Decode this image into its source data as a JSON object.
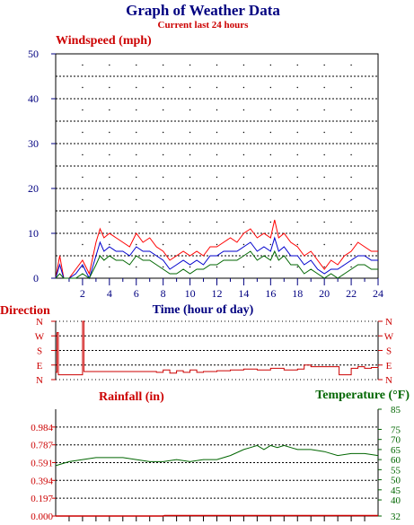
{
  "header": {
    "title": "Graph of Weather Data",
    "subtitle": "Current last 24 hours"
  },
  "colors": {
    "title": "#000080",
    "subtitle": "#cc0000",
    "wind_label": "#cc0000",
    "wind_axis": "#000080",
    "gust": "#ff0000",
    "avg": "#0000cc",
    "low": "#006600",
    "direction": "#cc0000",
    "rain": "#cc0000",
    "temp": "#006600",
    "grid": "#000000"
  },
  "chart_data": [
    {
      "id": "wind",
      "type": "line",
      "title": "Windspeed (mph)",
      "xlabel": "Time (hour of day)",
      "ylabel": "",
      "xlim": [
        0,
        24
      ],
      "ylim": [
        0,
        50
      ],
      "x_ticks": [
        2,
        4,
        6,
        8,
        10,
        12,
        14,
        16,
        18,
        20,
        22,
        24
      ],
      "y_ticks": [
        0,
        10,
        20,
        30,
        40,
        50
      ],
      "grid": true,
      "series": [
        {
          "key": "gust",
          "color": "#ff0000",
          "x": [
            0,
            0.3,
            0.6,
            1,
            1.5,
            2,
            2.5,
            3,
            3.3,
            3.6,
            4,
            4.5,
            5,
            5.5,
            6,
            6.5,
            7,
            7.5,
            8,
            8.5,
            9,
            9.5,
            10,
            10.5,
            11,
            11.5,
            12,
            12.5,
            13,
            13.5,
            14,
            14.5,
            15,
            15.5,
            16,
            16.3,
            16.6,
            17,
            17.5,
            18,
            18.5,
            19,
            19.5,
            20,
            20.5,
            21,
            21.5,
            22,
            22.5,
            23,
            23.5,
            24
          ],
          "y": [
            0,
            5,
            0,
            0,
            2,
            4,
            1,
            8,
            11,
            9,
            10,
            9,
            8,
            7,
            10,
            8,
            9,
            7,
            6,
            4,
            5,
            6,
            5,
            6,
            5,
            7,
            7,
            8,
            9,
            8,
            10,
            11,
            9,
            10,
            9,
            13,
            9,
            10,
            8,
            7,
            5,
            6,
            4,
            2,
            4,
            3,
            5,
            6,
            8,
            7,
            6,
            6
          ]
        },
        {
          "key": "avg",
          "color": "#0000cc",
          "x": [
            0,
            0.3,
            0.6,
            1,
            1.5,
            2,
            2.5,
            3,
            3.3,
            3.6,
            4,
            4.5,
            5,
            5.5,
            6,
            6.5,
            7,
            7.5,
            8,
            8.5,
            9,
            9.5,
            10,
            10.5,
            11,
            11.5,
            12,
            12.5,
            13,
            13.5,
            14,
            14.5,
            15,
            15.5,
            16,
            16.3,
            16.6,
            17,
            17.5,
            18,
            18.5,
            19,
            19.5,
            20,
            20.5,
            21,
            21.5,
            22,
            22.5,
            23,
            23.5,
            24
          ],
          "y": [
            0,
            3,
            0,
            0,
            1,
            3,
            0,
            5,
            8,
            6,
            7,
            6,
            6,
            5,
            7,
            6,
            6,
            5,
            4,
            2,
            3,
            4,
            3,
            4,
            3,
            5,
            5,
            6,
            6,
            6,
            7,
            8,
            6,
            7,
            6,
            9,
            6,
            7,
            5,
            5,
            3,
            4,
            2,
            1,
            2,
            2,
            3,
            4,
            5,
            5,
            4,
            4
          ]
        },
        {
          "key": "low",
          "color": "#006600",
          "x": [
            0,
            0.3,
            0.6,
            1,
            1.5,
            2,
            2.5,
            3,
            3.3,
            3.6,
            4,
            4.5,
            5,
            5.5,
            6,
            6.5,
            7,
            7.5,
            8,
            8.5,
            9,
            9.5,
            10,
            10.5,
            11,
            11.5,
            12,
            12.5,
            13,
            13.5,
            14,
            14.5,
            15,
            15.5,
            16,
            16.3,
            16.6,
            17,
            17.5,
            18,
            18.5,
            19,
            19.5,
            20,
            20.5,
            21,
            21.5,
            22,
            22.5,
            23,
            23.5,
            24
          ],
          "y": [
            0,
            1,
            0,
            0,
            0,
            1,
            0,
            3,
            5,
            4,
            5,
            4,
            4,
            3,
            5,
            4,
            4,
            3,
            2,
            1,
            1,
            2,
            1,
            2,
            2,
            3,
            3,
            4,
            4,
            4,
            5,
            6,
            4,
            5,
            4,
            6,
            4,
            5,
            3,
            3,
            1,
            2,
            1,
            0,
            1,
            0,
            1,
            2,
            3,
            3,
            2,
            2
          ]
        }
      ]
    },
    {
      "id": "direction",
      "type": "line",
      "title": "Direction",
      "xlim": [
        0,
        24
      ],
      "y_categories": [
        "N",
        "W",
        "S",
        "E",
        "N"
      ],
      "series": [
        {
          "key": "direction",
          "color": "#cc0000",
          "x": [
            0,
            0.1,
            0.2,
            0.5,
            1,
            1.5,
            1.9,
            2.0,
            2.1,
            2.3,
            3,
            4,
            5,
            6,
            7,
            7.5,
            8,
            8.5,
            9,
            9.5,
            10,
            10.5,
            11,
            12,
            13,
            14,
            15,
            16,
            17,
            18,
            18.5,
            19,
            20,
            20.5,
            21,
            21.1,
            21.5,
            22,
            22.5,
            23,
            23.5,
            24
          ],
          "y": [
            45,
            290,
            30,
            30,
            30,
            30,
            30,
            360,
            50,
            50,
            50,
            50,
            50,
            50,
            50,
            45,
            60,
            40,
            55,
            45,
            60,
            45,
            50,
            55,
            60,
            65,
            60,
            70,
            60,
            65,
            90,
            80,
            80,
            80,
            80,
            30,
            30,
            70,
            80,
            70,
            75,
            70
          ]
        }
      ]
    },
    {
      "id": "rain_temp",
      "type": "line",
      "title": "Rainfall (in)",
      "title_right": "Temperature (°F)",
      "xlim": [
        0,
        24
      ],
      "ylim_left": [
        0,
        1.181
      ],
      "y_ticks_left": [
        "0.000",
        "0.197",
        "0.394",
        "0.591",
        "0.787",
        "0.984"
      ],
      "ylim_right": [
        32,
        85
      ],
      "y_ticks_right": [
        "32",
        "40",
        "45",
        "50",
        "55",
        "60",
        "65",
        "70",
        "75",
        "85"
      ],
      "series": [
        {
          "key": "rainfall",
          "name": "Rainfall (in)",
          "color": "#cc0000",
          "x": [
            0,
            8,
            8.1,
            24
          ],
          "y": [
            0.0,
            0.0,
            0.005,
            0.005
          ]
        },
        {
          "key": "temperature",
          "name": "Temperature (°F)",
          "color": "#006600",
          "x": [
            0,
            0.5,
            1,
            2,
            3,
            4,
            5,
            6,
            7,
            8,
            9,
            10,
            11,
            12,
            13,
            14,
            14.5,
            15,
            15.5,
            16,
            16.5,
            17,
            17.5,
            18,
            19,
            20,
            21,
            22,
            23,
            24
          ],
          "y": [
            57,
            58,
            59,
            60,
            61,
            61,
            61,
            60,
            59,
            59,
            60,
            59,
            60,
            60,
            62,
            65,
            66,
            67,
            65,
            67,
            66,
            67,
            66,
            65,
            65,
            64,
            62,
            63,
            63,
            62
          ]
        }
      ]
    }
  ]
}
